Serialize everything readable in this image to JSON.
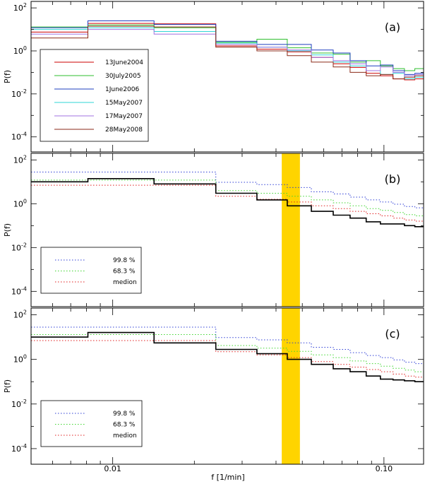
{
  "figure": {
    "xlabel": "f [1/min]",
    "x_scale": "log",
    "xlim": [
      0.005,
      0.14
    ],
    "x_ticks": [
      {
        "value": 0.01,
        "label": "0.01"
      },
      {
        "value": 0.1,
        "label": "0.10"
      }
    ],
    "highlight_band": {
      "x": [
        0.042,
        0.049
      ],
      "color": "#FFD400"
    },
    "colors": {
      "13June2004": "#cc0000",
      "30July2005": "#2fbf2f",
      "1June2006": "#1f3fbf",
      "15May2007": "#2fd6d6",
      "17May2007": "#a070e0",
      "28May2008": "#8b2a18",
      "99.8": "#2f3fd6",
      "68.3": "#3fd62f",
      "median": "#e02020",
      "data": "#000000"
    }
  },
  "chart_data": [
    {
      "type": "line",
      "style": "step",
      "panel_label": "(a)",
      "ylabel": "P(f)",
      "y_scale": "log",
      "ylim": [
        2e-05,
        200
      ],
      "y_ticks": [
        {
          "value": 100,
          "base": "10",
          "exp": "2"
        },
        {
          "value": 1,
          "base": "10",
          "exp": "0"
        },
        {
          "value": 0.01,
          "base": "10",
          "exp": "-2"
        },
        {
          "value": 0.0001,
          "base": "10",
          "exp": "-4"
        }
      ],
      "legend": "bottom-left",
      "bin_edges": [
        0.005,
        0.0081,
        0.0142,
        0.024,
        0.034,
        0.044,
        0.054,
        0.065,
        0.075,
        0.086,
        0.097,
        0.108,
        0.119,
        0.13,
        0.14
      ],
      "series": [
        {
          "name": "13June2004",
          "values": [
            7.5,
            19,
            18,
            1.7,
            1.2,
            0.9,
            0.5,
            0.25,
            0.17,
            0.09,
            0.07,
            0.05,
            0.045,
            0.05
          ]
        },
        {
          "name": "30July2005",
          "values": [
            13,
            16,
            12,
            2.5,
            3.5,
            1.4,
            0.8,
            0.7,
            0.3,
            0.35,
            0.2,
            0.15,
            0.12,
            0.15
          ]
        },
        {
          "name": "1June2006",
          "values": [
            12,
            25,
            17,
            2.8,
            2.0,
            2.0,
            1.1,
            0.8,
            0.35,
            0.2,
            0.22,
            0.12,
            0.08,
            0.09
          ]
        },
        {
          "name": "15May2007",
          "values": [
            10,
            12,
            8,
            2.3,
            1.5,
            1.0,
            0.65,
            0.3,
            0.2,
            0.12,
            0.08,
            0.09,
            0.05,
            0.06
          ]
        },
        {
          "name": "17May2007",
          "values": [
            6,
            10,
            6,
            2.0,
            1.5,
            1.1,
            0.5,
            0.35,
            0.25,
            0.12,
            0.18,
            0.1,
            0.07,
            0.08
          ]
        },
        {
          "name": "28May2008",
          "values": [
            4,
            14,
            13,
            1.5,
            1.0,
            0.6,
            0.3,
            0.18,
            0.1,
            0.07,
            0.08,
            0.05,
            0.06,
            0.07
          ]
        }
      ]
    },
    {
      "type": "line",
      "style": "step",
      "panel_label": "(b)",
      "ylabel": "P(f)",
      "y_scale": "log",
      "ylim": [
        2e-05,
        200
      ],
      "y_ticks": [
        {
          "value": 100,
          "base": "10",
          "exp": "2"
        },
        {
          "value": 1,
          "base": "10",
          "exp": "0"
        },
        {
          "value": 0.01,
          "base": "10",
          "exp": "-2"
        },
        {
          "value": 0.0001,
          "base": "10",
          "exp": "-4"
        }
      ],
      "legend": "bottom-left",
      "bin_edges": [
        0.005,
        0.0081,
        0.0142,
        0.024,
        0.034,
        0.044,
        0.054,
        0.065,
        0.075,
        0.086,
        0.097,
        0.108,
        0.119,
        0.13,
        0.14
      ],
      "series": [
        {
          "name": "99.8 %",
          "line": "dotted",
          "values": [
            28,
            28,
            28,
            9.5,
            7.5,
            5.5,
            3.5,
            2.8,
            2.0,
            1.5,
            1.2,
            0.95,
            0.75,
            0.65
          ]
        },
        {
          "name": "68.3 %",
          "line": "dotted",
          "values": [
            12,
            12,
            12,
            4.0,
            3.0,
            2.2,
            1.5,
            1.1,
            0.8,
            0.6,
            0.5,
            0.4,
            0.32,
            0.28
          ]
        },
        {
          "name": "medion",
          "line": "dotted",
          "values": [
            7,
            7,
            7,
            2.2,
            1.6,
            1.2,
            0.8,
            0.6,
            0.45,
            0.35,
            0.28,
            0.22,
            0.18,
            0.16
          ]
        },
        {
          "line": "solid",
          "values": [
            10,
            14,
            8,
            3.0,
            1.5,
            0.8,
            0.45,
            0.3,
            0.22,
            0.15,
            0.12,
            0.12,
            0.1,
            0.09
          ]
        }
      ]
    },
    {
      "type": "line",
      "style": "step",
      "panel_label": "(c)",
      "ylabel": "P(f)",
      "y_scale": "log",
      "ylim": [
        2e-05,
        200
      ],
      "y_ticks": [
        {
          "value": 100,
          "base": "10",
          "exp": "2"
        },
        {
          "value": 1,
          "base": "10",
          "exp": "0"
        },
        {
          "value": 0.01,
          "base": "10",
          "exp": "-2"
        },
        {
          "value": 0.0001,
          "base": "10",
          "exp": "-4"
        }
      ],
      "legend": "bottom-left",
      "bin_edges": [
        0.005,
        0.0081,
        0.0142,
        0.024,
        0.034,
        0.044,
        0.054,
        0.065,
        0.075,
        0.086,
        0.097,
        0.108,
        0.119,
        0.13,
        0.14
      ],
      "series": [
        {
          "name": "99.8 %",
          "line": "dotted",
          "values": [
            28,
            28,
            28,
            9.5,
            7.5,
            5.5,
            3.5,
            2.8,
            2.0,
            1.5,
            1.2,
            0.95,
            0.75,
            0.65
          ]
        },
        {
          "name": "68.3 %",
          "line": "dotted",
          "values": [
            13,
            13,
            13,
            4.2,
            3.2,
            2.3,
            1.6,
            1.2,
            0.85,
            0.65,
            0.5,
            0.4,
            0.33,
            0.28
          ]
        },
        {
          "name": "medion",
          "line": "dotted",
          "values": [
            7,
            7,
            7,
            2.2,
            1.6,
            1.2,
            0.8,
            0.6,
            0.45,
            0.35,
            0.28,
            0.22,
            0.18,
            0.16
          ]
        },
        {
          "line": "solid",
          "values": [
            10,
            16,
            5.5,
            2.8,
            1.8,
            1.0,
            0.6,
            0.38,
            0.28,
            0.18,
            0.13,
            0.12,
            0.11,
            0.1
          ]
        }
      ]
    }
  ]
}
